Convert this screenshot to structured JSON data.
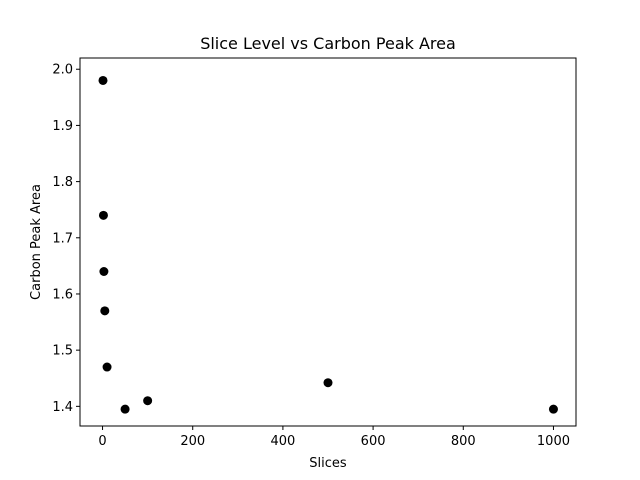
{
  "chart_data": {
    "type": "scatter",
    "title": "Slice Level vs Carbon Peak Area",
    "xlabel": "Slices",
    "ylabel": "Carbon Peak Area",
    "xlim": [
      -50,
      1050
    ],
    "ylim": [
      1.365,
      2.02
    ],
    "xticks": [
      0,
      200,
      400,
      600,
      800,
      1000
    ],
    "yticks": [
      1.4,
      1.5,
      1.6,
      1.7,
      1.8,
      1.9,
      2.0
    ],
    "xtick_labels": [
      "0",
      "200",
      "400",
      "600",
      "800",
      "1000"
    ],
    "ytick_labels": [
      "1.4",
      "1.5",
      "1.6",
      "1.7",
      "1.8",
      "1.9",
      "2.0"
    ],
    "grid": false,
    "marker_color": "#000000",
    "points": [
      {
        "x": 1,
        "y": 1.98
      },
      {
        "x": 2,
        "y": 1.74
      },
      {
        "x": 3,
        "y": 1.64
      },
      {
        "x": 5,
        "y": 1.57
      },
      {
        "x": 10,
        "y": 1.47
      },
      {
        "x": 50,
        "y": 1.395
      },
      {
        "x": 100,
        "y": 1.41
      },
      {
        "x": 500,
        "y": 1.442
      },
      {
        "x": 1000,
        "y": 1.395
      }
    ]
  }
}
